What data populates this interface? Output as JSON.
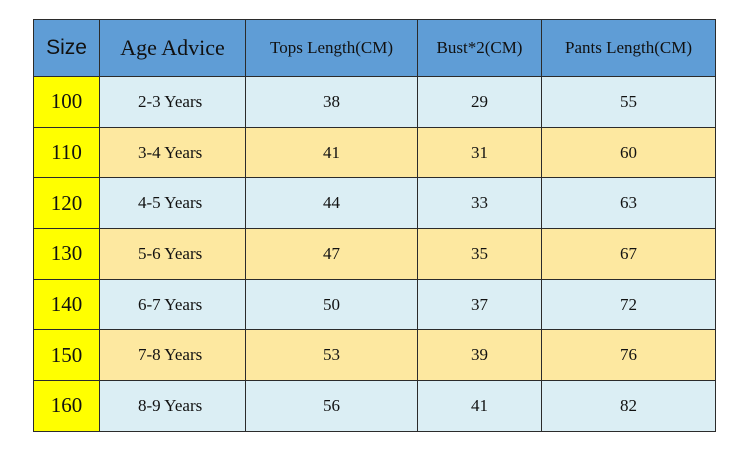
{
  "table": {
    "header": [
      "Size",
      "Age Advice",
      "Tops Length(CM)",
      "Bust*2(CM)",
      "Pants Length(CM)"
    ],
    "rows": [
      [
        "100",
        "2-3 Years",
        "38",
        "29",
        "55"
      ],
      [
        "110",
        "3-4 Years",
        "41",
        "31",
        "60"
      ],
      [
        "120",
        "4-5 Years",
        "44",
        "33",
        "63"
      ],
      [
        "130",
        "5-6 Years",
        "47",
        "35",
        "67"
      ],
      [
        "140",
        "6-7 Years",
        "50",
        "37",
        "72"
      ],
      [
        "150",
        "7-8 Years",
        "53",
        "39",
        "76"
      ],
      [
        "160",
        "8-9 Years",
        "56",
        "41",
        "82"
      ]
    ]
  }
}
